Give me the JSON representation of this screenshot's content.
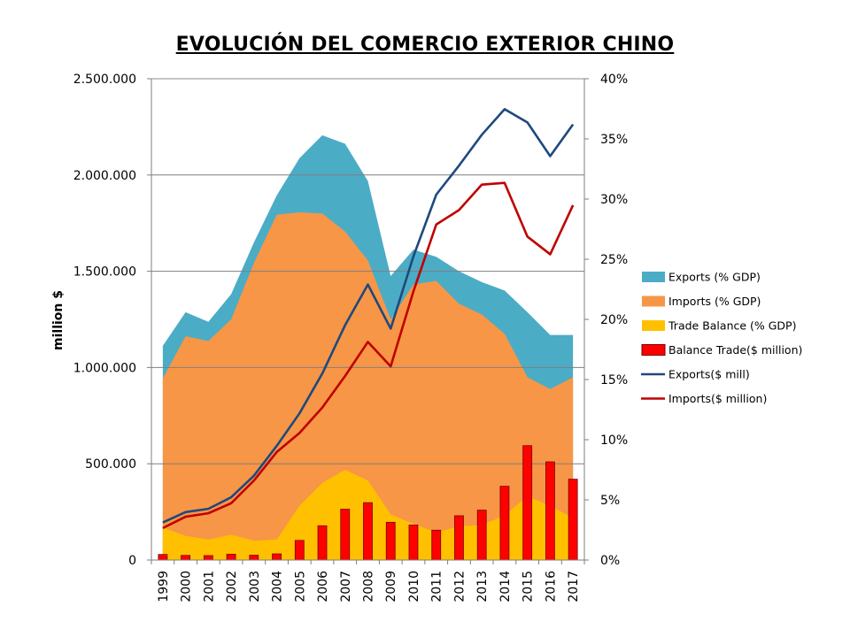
{
  "chart_data": {
    "type": "area",
    "title": "EVOLUCIÓN DEL COMERCIO EXTERIOR CHINO",
    "ylabel": "million $",
    "ylim": [
      0,
      2500000
    ],
    "y2lim": [
      0,
      40
    ],
    "yticks": [
      0,
      500000,
      1000000,
      1500000,
      2000000,
      2500000
    ],
    "ytick_labels": [
      "0",
      "500.000",
      "1.000.000",
      "1.500.000",
      "2.000.000",
      "2.500.000"
    ],
    "y2ticks": [
      0,
      5,
      10,
      15,
      20,
      25,
      30,
      35,
      40
    ],
    "y2tick_labels": [
      "0%",
      "5%",
      "10%",
      "15%",
      "20%",
      "25%",
      "30%",
      "35%",
      "40%"
    ],
    "grid": true,
    "legend_position": "right",
    "categories": [
      "1999",
      "2000",
      "2001",
      "2002",
      "2003",
      "2004",
      "2005",
      "2006",
      "2007",
      "2008",
      "2009",
      "2010",
      "2011",
      "2012",
      "2013",
      "2014",
      "2015",
      "2016",
      "2017"
    ],
    "series": [
      {
        "name": "Exports (% GDP)",
        "kind": "area",
        "axis": "right",
        "color": "#4BACC6",
        "values": [
          17.8,
          20.6,
          19.8,
          22.1,
          26.4,
          30.3,
          33.4,
          35.3,
          34.6,
          31.5,
          23.6,
          25.8,
          25.2,
          24.0,
          23.1,
          22.4,
          20.6,
          18.7,
          18.7
        ]
      },
      {
        "name": "Imports (% GDP)",
        "kind": "area",
        "axis": "right",
        "color": "#F79646",
        "values": [
          15.1,
          18.6,
          18.2,
          20.0,
          24.7,
          28.7,
          28.9,
          28.8,
          27.3,
          24.9,
          20.0,
          22.9,
          23.2,
          21.3,
          20.4,
          18.8,
          15.2,
          14.2,
          15.2
        ]
      },
      {
        "name": "Trade Balance (% GDP)",
        "kind": "area",
        "axis": "right",
        "color": "#FFC000",
        "values": [
          2.7,
          2.0,
          1.7,
          2.1,
          1.6,
          1.7,
          4.5,
          6.4,
          7.5,
          6.6,
          3.8,
          3.0,
          2.3,
          2.8,
          2.9,
          3.7,
          5.3,
          4.5,
          3.5
        ]
      },
      {
        "name": "Balance Trade($ million)",
        "kind": "bar",
        "axis": "left",
        "color": "#FF0000",
        "values": [
          29000,
          24000,
          23000,
          30000,
          25000,
          32000,
          102000,
          178000,
          264000,
          298000,
          196000,
          182000,
          155000,
          230000,
          259000,
          383000,
          594000,
          510000,
          420000
        ]
      },
      {
        "name": "Exports($ mill)",
        "kind": "line",
        "axis": "left",
        "color": "#1F497D",
        "values": [
          195000,
          249000,
          266000,
          326000,
          438000,
          593000,
          762000,
          969000,
          1220000,
          1431000,
          1202000,
          1578000,
          1898000,
          2049000,
          2209000,
          2342000,
          2273000,
          2098000,
          2263000
        ]
      },
      {
        "name": "Imports($ million)",
        "kind": "line",
        "axis": "left",
        "color": "#C00000",
        "values": [
          166000,
          225000,
          243000,
          295000,
          413000,
          561000,
          660000,
          792000,
          956000,
          1133000,
          1006000,
          1396000,
          1743000,
          1818000,
          1950000,
          1959000,
          1680000,
          1588000,
          1843000
        ]
      }
    ]
  }
}
